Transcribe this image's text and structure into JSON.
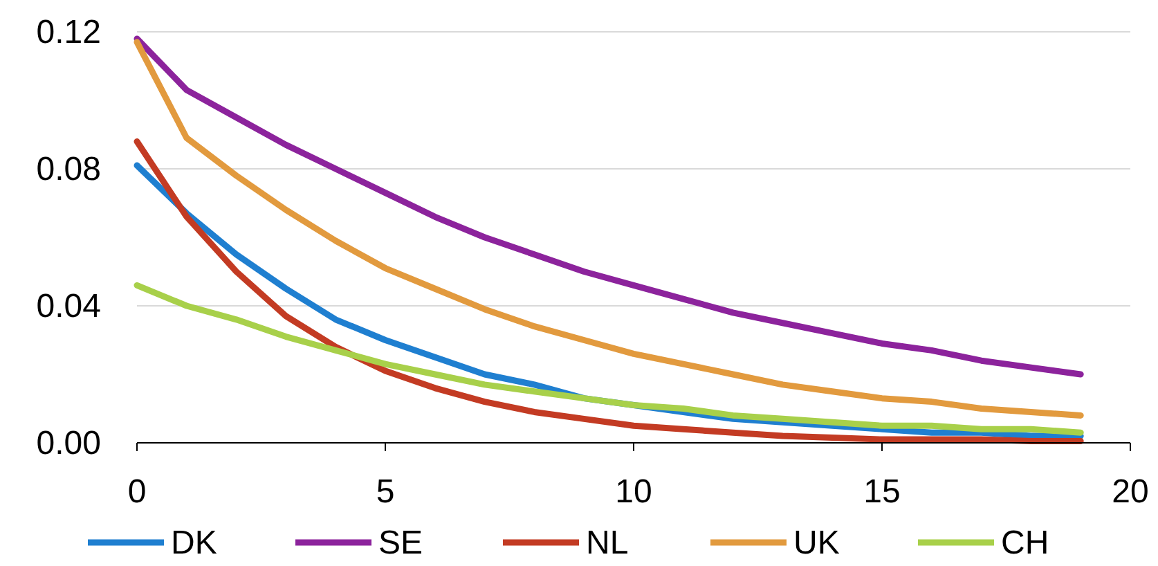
{
  "chart_data": {
    "type": "line",
    "x": [
      0,
      1,
      2,
      3,
      4,
      5,
      6,
      7,
      8,
      9,
      10,
      11,
      12,
      13,
      14,
      15,
      16,
      17,
      18,
      19
    ],
    "xlim": [
      0,
      20
    ],
    "xticks": [
      0,
      5,
      10,
      15,
      20
    ],
    "ylim": [
      0,
      0.12
    ],
    "yticks": [
      {
        "value": 0,
        "label": "0.00"
      },
      {
        "value": 0.04,
        "label": "0.04"
      },
      {
        "value": 0.08,
        "label": "0.08"
      },
      {
        "value": 0.12,
        "label": "0.12"
      }
    ],
    "grid": "y",
    "legend": "bottom",
    "marker": "none",
    "line_style": "solid",
    "series": [
      {
        "name": "DK",
        "color": "#1f7fd0",
        "values": [
          0.081,
          0.067,
          0.055,
          0.045,
          0.036,
          0.03,
          0.025,
          0.02,
          0.017,
          0.013,
          0.011,
          0.009,
          0.007,
          0.006,
          0.005,
          0.004,
          0.003,
          0.003,
          0.002,
          0.002
        ]
      },
      {
        "name": "SE",
        "color": "#8c239c",
        "values": [
          0.118,
          0.103,
          0.095,
          0.087,
          0.08,
          0.073,
          0.066,
          0.06,
          0.055,
          0.05,
          0.046,
          0.042,
          0.038,
          0.035,
          0.032,
          0.029,
          0.027,
          0.024,
          0.022,
          0.02
        ]
      },
      {
        "name": "NL",
        "color": "#c33b23",
        "values": [
          0.088,
          0.066,
          0.05,
          0.037,
          0.028,
          0.021,
          0.016,
          0.012,
          0.009,
          0.007,
          0.005,
          0.004,
          0.003,
          0.002,
          0.0015,
          0.001,
          0.001,
          0.001,
          0.0005,
          0.0005
        ]
      },
      {
        "name": "UK",
        "color": "#e29a3e",
        "values": [
          0.117,
          0.089,
          0.078,
          0.068,
          0.059,
          0.051,
          0.045,
          0.039,
          0.034,
          0.03,
          0.026,
          0.023,
          0.02,
          0.017,
          0.015,
          0.013,
          0.012,
          0.01,
          0.009,
          0.008
        ]
      },
      {
        "name": "CH",
        "color": "#a8d04a",
        "values": [
          0.046,
          0.04,
          0.036,
          0.031,
          0.027,
          0.023,
          0.02,
          0.017,
          0.015,
          0.013,
          0.011,
          0.01,
          0.008,
          0.007,
          0.006,
          0.005,
          0.005,
          0.004,
          0.004,
          0.003
        ]
      }
    ]
  }
}
